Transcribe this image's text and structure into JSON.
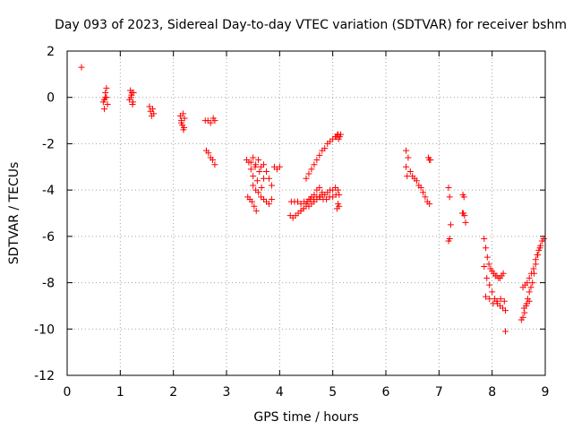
{
  "chart_data": {
    "type": "scatter",
    "title": "Day 093 of 2023, Sidereal Day-to-day VTEC variation (SDTVAR) for receiver bshm",
    "xlabel": "GPS time / hours",
    "ylabel": "SDTVAR / TECUs",
    "xlim": [
      0,
      9
    ],
    "ylim": [
      -12,
      2
    ],
    "xticks": [
      0,
      1,
      2,
      3,
      4,
      5,
      6,
      7,
      8,
      9
    ],
    "yticks": [
      -12,
      -10,
      -8,
      -6,
      -4,
      -2,
      0,
      2
    ],
    "xtick_labels": [
      "0",
      "1",
      "2",
      "3",
      "4",
      "5",
      "6",
      "7",
      "8",
      "9"
    ],
    "ytick_labels": [
      "-12",
      "-10",
      "-8",
      "-6",
      "-4",
      "-2",
      "0",
      "2"
    ],
    "grid": true,
    "marker": "+",
    "series": [
      {
        "name": "SDTVAR",
        "color": "#ff0000",
        "x": [
          0.27,
          0.68,
          0.7,
          0.72,
          0.74,
          0.76,
          0.7,
          0.72,
          0.74,
          1.17,
          1.19,
          1.21,
          1.23,
          1.25,
          1.2,
          1.22,
          1.24,
          1.55,
          1.57,
          1.59,
          1.61,
          1.63,
          2.13,
          2.15,
          2.17,
          2.19,
          2.21,
          2.15,
          2.18,
          2.2,
          2.6,
          2.65,
          2.7,
          2.75,
          2.78,
          2.62,
          2.66,
          2.7,
          2.74,
          2.78,
          3.38,
          3.42,
          3.46,
          3.5,
          3.54,
          3.58,
          3.62,
          3.66,
          3.7,
          3.46,
          3.5,
          3.55,
          3.6,
          3.65,
          3.7,
          3.75,
          3.8,
          3.85,
          3.4,
          3.44,
          3.48,
          3.52,
          3.56,
          3.5,
          3.55,
          3.6,
          3.65,
          3.7,
          3.75,
          3.8,
          3.85,
          3.9,
          3.95,
          4.0,
          4.2,
          4.25,
          4.3,
          4.35,
          4.4,
          4.45,
          4.5,
          4.55,
          4.6,
          4.65,
          4.7,
          4.75,
          4.8,
          4.85,
          4.9,
          4.95,
          5.0,
          5.05,
          5.1,
          4.22,
          4.28,
          4.34,
          4.4,
          4.46,
          4.52,
          4.58,
          4.64,
          4.7,
          4.76,
          4.82,
          4.88,
          4.94,
          5.0,
          5.06,
          5.12,
          4.4,
          4.45,
          4.5,
          4.55,
          4.6,
          4.65,
          4.7,
          4.75,
          4.8,
          4.5,
          4.55,
          4.6,
          4.65,
          4.7,
          4.75,
          4.8,
          4.85,
          4.9,
          4.95,
          5.0,
          5.05,
          5.1,
          5.07,
          5.09,
          5.11,
          5.13,
          5.15,
          5.08,
          5.1,
          5.12,
          6.38,
          6.42,
          6.46,
          6.5,
          6.54,
          6.58,
          6.62,
          6.66,
          6.7,
          6.74,
          6.78,
          6.82,
          6.38,
          6.4,
          6.8,
          6.82,
          6.84,
          7.18,
          7.2,
          7.22,
          7.18,
          7.2,
          7.45,
          7.47,
          7.44,
          7.46,
          7.48,
          7.5,
          7.85,
          7.88,
          7.91,
          7.94,
          7.97,
          8.0,
          8.03,
          8.06,
          8.09,
          8.12,
          8.15,
          8.18,
          8.21,
          7.85,
          7.9,
          7.95,
          8.0,
          8.05,
          8.1,
          8.15,
          8.2,
          8.25,
          7.88,
          7.95,
          8.02,
          8.09,
          8.16,
          8.23,
          8.25,
          8.55,
          8.58,
          8.61,
          8.64,
          8.67,
          8.7,
          8.73,
          8.76,
          8.79,
          8.82,
          8.85,
          8.88,
          8.91,
          8.94,
          8.97,
          8.58,
          8.62,
          8.66,
          8.7,
          8.74,
          8.78,
          8.82,
          8.86,
          8.9,
          8.6,
          8.65,
          8.7
        ],
        "y": [
          1.3,
          -0.2,
          -0.5,
          0.0,
          0.4,
          -0.3,
          -0.1,
          0.2,
          0.0,
          -0.1,
          0.3,
          0.1,
          -0.3,
          0.2,
          0.0,
          0.2,
          -0.2,
          -0.4,
          -0.6,
          -0.8,
          -0.5,
          -0.7,
          -0.8,
          -1.0,
          -1.2,
          -1.4,
          -0.9,
          -1.1,
          -0.7,
          -1.3,
          -1.0,
          -1.0,
          -1.1,
          -0.9,
          -1.0,
          -2.3,
          -2.4,
          -2.6,
          -2.7,
          -2.9,
          -2.7,
          -2.8,
          -3.1,
          -3.4,
          -3.0,
          -3.6,
          -3.2,
          -3.9,
          -3.5,
          -2.8,
          -2.6,
          -2.9,
          -2.7,
          -3.0,
          -2.9,
          -3.2,
          -3.5,
          -3.8,
          -4.3,
          -4.4,
          -4.5,
          -4.7,
          -4.9,
          -3.8,
          -4.0,
          -4.1,
          -4.3,
          -4.4,
          -4.5,
          -4.6,
          -4.4,
          -3.0,
          -3.1,
          -3.0,
          -5.1,
          -5.2,
          -5.1,
          -5.0,
          -4.9,
          -4.8,
          -4.7,
          -4.7,
          -4.6,
          -4.5,
          -4.4,
          -4.3,
          -4.2,
          -4.2,
          -4.1,
          -4.0,
          -4.0,
          -3.9,
          -4.0,
          -4.5,
          -4.5,
          -4.5,
          -4.6,
          -4.5,
          -4.5,
          -4.4,
          -4.4,
          -4.3,
          -4.3,
          -4.4,
          -4.4,
          -4.3,
          -4.3,
          -4.2,
          -4.2,
          -4.9,
          -4.8,
          -4.6,
          -4.4,
          -4.3,
          -4.2,
          -4.0,
          -3.9,
          -4.1,
          -3.5,
          -3.3,
          -3.1,
          -2.9,
          -2.7,
          -2.5,
          -2.3,
          -2.2,
          -2.0,
          -1.9,
          -1.8,
          -1.7,
          -1.6,
          -1.7,
          -1.6,
          -1.8,
          -1.7,
          -1.6,
          -4.8,
          -4.6,
          -4.7,
          -2.3,
          -2.6,
          -3.2,
          -3.4,
          -3.5,
          -3.6,
          -3.8,
          -3.9,
          -4.1,
          -4.3,
          -4.5,
          -4.6,
          -3.0,
          -3.4,
          -2.6,
          -2.7,
          -2.7,
          -3.9,
          -4.3,
          -5.5,
          -6.2,
          -6.1,
          -4.2,
          -4.3,
          -5.0,
          -5.0,
          -5.1,
          -5.4,
          -6.1,
          -6.5,
          -6.9,
          -7.2,
          -7.4,
          -7.5,
          -7.6,
          -7.7,
          -7.7,
          -7.8,
          -7.8,
          -7.7,
          -7.6,
          -7.3,
          -7.8,
          -8.1,
          -8.4,
          -8.7,
          -8.9,
          -9.0,
          -9.1,
          -9.2,
          -8.6,
          -8.7,
          -8.9,
          -8.8,
          -8.7,
          -8.8,
          -10.1,
          -9.6,
          -9.5,
          -9.3,
          -9.0,
          -8.7,
          -8.4,
          -8.2,
          -8.0,
          -7.6,
          -7.2,
          -6.8,
          -6.6,
          -6.4,
          -6.2,
          -6.1,
          -8.2,
          -8.1,
          -8.0,
          -7.8,
          -7.6,
          -7.4,
          -7.0,
          -6.8,
          -6.5,
          -9.1,
          -8.9,
          -8.8
        ]
      }
    ]
  }
}
